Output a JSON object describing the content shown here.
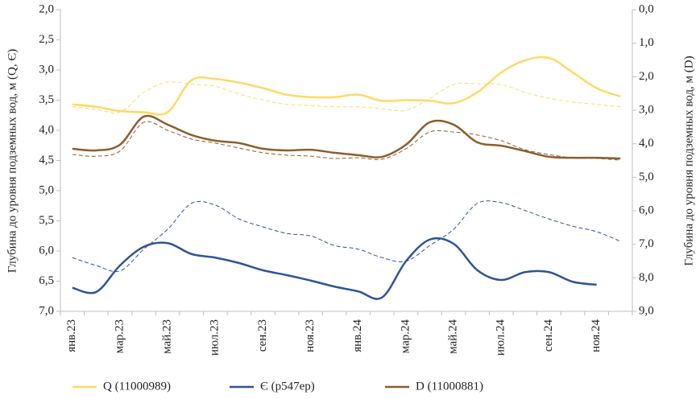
{
  "chart_data": {
    "type": "line",
    "y_label": "Глубина до уровня подземных вод, м (Q, Є)",
    "y2_label": "Глубина до уровня подземных вод, м (D)",
    "y_inverted": true,
    "y2_inverted": true,
    "categories": [
      "янв.23",
      null,
      "мар.23",
      null,
      "май.23",
      null,
      "июл.23",
      null,
      "сен.23",
      null,
      "ноя.23",
      null,
      "янв.24",
      null,
      "мар.24",
      null,
      "май.24",
      null,
      "июл.24",
      null,
      "сен.24",
      null,
      "ноя.24",
      null
    ],
    "ylim": [
      2.0,
      7.0
    ],
    "yticks": [
      {
        "value": 2.0,
        "label": "2,0"
      },
      {
        "value": 2.5,
        "label": "2,5"
      },
      {
        "value": 3.0,
        "label": "3,0"
      },
      {
        "value": 3.5,
        "label": "3,5"
      },
      {
        "value": 4.0,
        "label": "4,0"
      },
      {
        "value": 4.5,
        "label": "4,5"
      },
      {
        "value": 5.0,
        "label": "5,0"
      },
      {
        "value": 5.5,
        "label": "5,5"
      },
      {
        "value": 6.0,
        "label": "6,0"
      },
      {
        "value": 6.5,
        "label": "6,5"
      },
      {
        "value": 7.0,
        "label": "7,0"
      }
    ],
    "y2lim": [
      0.0,
      9.0
    ],
    "y2ticks": [
      {
        "value": 0,
        "label": "0,0"
      },
      {
        "value": 1,
        "label": "1,0"
      },
      {
        "value": 2,
        "label": "2,0"
      },
      {
        "value": 3,
        "label": "3,0"
      },
      {
        "value": 4,
        "label": "4,0"
      },
      {
        "value": 5,
        "label": "5,0"
      },
      {
        "value": 6,
        "label": "6,0"
      },
      {
        "value": 7,
        "label": "7,0"
      },
      {
        "value": 8,
        "label": "8,0"
      },
      {
        "value": 9,
        "label": "9,0"
      }
    ],
    "grid": false,
    "legend": "bottom",
    "series": [
      {
        "name": "Q (11000989)",
        "color": "#ffd966",
        "dash": false,
        "values": [
          3.57,
          3.61,
          3.68,
          3.7,
          3.7,
          3.17,
          3.15,
          3.21,
          3.3,
          3.41,
          3.45,
          3.45,
          3.41,
          3.51,
          3.5,
          3.51,
          3.55,
          3.37,
          3.04,
          2.84,
          2.8,
          3.04,
          3.3,
          3.44
        ]
      },
      {
        "name": "Є (р547ер)",
        "color": "#2f5597",
        "dash": false,
        "values": [
          6.61,
          6.68,
          6.24,
          5.93,
          5.87,
          6.05,
          6.11,
          6.2,
          6.32,
          6.4,
          6.49,
          6.59,
          6.67,
          6.77,
          6.17,
          5.81,
          5.88,
          6.32,
          6.48,
          6.35,
          6.35,
          6.51,
          6.56,
          null
        ]
      },
      {
        "name": "D (11000881)",
        "color": "#8c5e2e",
        "dash": false,
        "axis": "y2",
        "values": [
          4.15,
          4.2,
          4.03,
          3.19,
          3.43,
          3.74,
          3.91,
          3.98,
          4.15,
          4.2,
          4.18,
          4.27,
          4.34,
          4.39,
          4.03,
          3.36,
          3.43,
          3.96,
          4.06,
          4.22,
          4.39,
          4.42,
          4.42,
          4.44
        ]
      },
      {
        "color": "#ffd966",
        "dash": true,
        "values": [
          3.61,
          3.65,
          3.7,
          3.37,
          3.2,
          3.24,
          3.27,
          3.4,
          3.5,
          3.57,
          3.59,
          3.61,
          3.61,
          3.64,
          3.67,
          3.47,
          3.24,
          3.23,
          3.24,
          3.37,
          3.47,
          3.53,
          3.57,
          3.61
        ]
      },
      {
        "color": "#2f5597",
        "dash": true,
        "values": [
          6.11,
          6.24,
          6.33,
          5.97,
          5.64,
          5.21,
          5.24,
          5.47,
          5.6,
          5.71,
          5.75,
          5.91,
          5.97,
          6.11,
          6.17,
          5.91,
          5.64,
          5.21,
          5.2,
          5.33,
          5.47,
          5.59,
          5.68,
          5.84
        ]
      },
      {
        "color": "#8c5e2e",
        "dash": true,
        "axis": "y2",
        "values": [
          4.32,
          4.37,
          4.22,
          3.36,
          3.6,
          3.86,
          3.98,
          4.13,
          4.27,
          4.34,
          4.37,
          4.44,
          4.42,
          4.46,
          4.15,
          3.65,
          3.65,
          3.74,
          3.91,
          4.18,
          4.32,
          4.42,
          4.44,
          4.49
        ]
      }
    ]
  }
}
